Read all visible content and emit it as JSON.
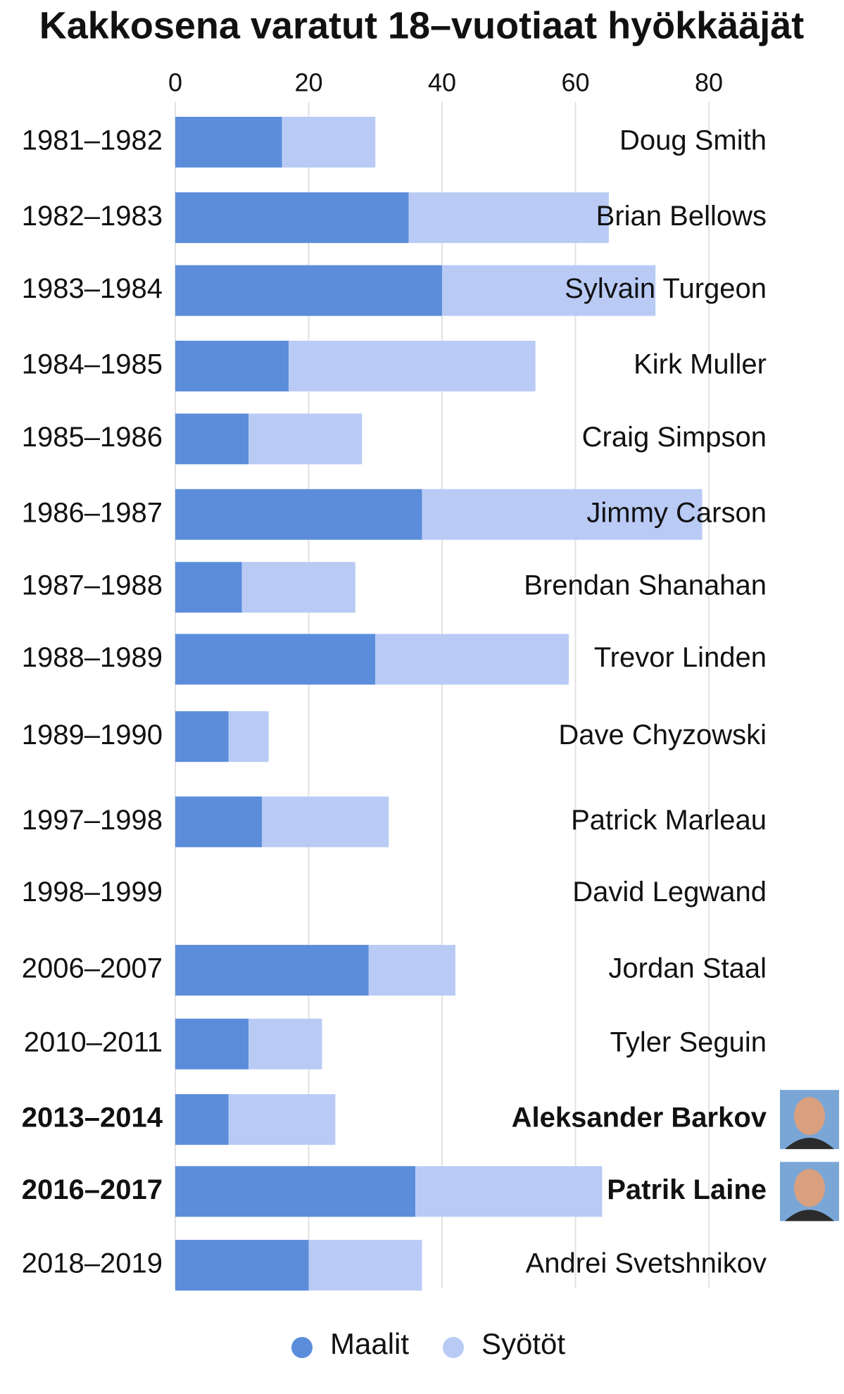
{
  "chart_data": {
    "type": "stacked-barh",
    "title": "Kakkosena varatut 18–vuotiaat hyökkääjät",
    "categories": [
      "1981–1982",
      "1982–1983",
      "1983–1984",
      "1984–1985",
      "1985–1986",
      "1986–1987",
      "1987–1988",
      "1988–1989",
      "1989–1990",
      "1997–1998",
      "1998–1999",
      "2006–2007",
      "2010–2011",
      "2013–2014",
      "2016–2017",
      "2018–2019"
    ],
    "labels": [
      "Doug Smith",
      "Brian Bellows",
      "Sylvain Turgeon",
      "Kirk Muller",
      "Craig Simpson",
      "Jimmy Carson",
      "Brendan Shanahan",
      "Trevor Linden",
      "Dave Chyzowski",
      "Patrick Marleau",
      "David Legwand",
      "Jordan Staal",
      "Tyler Seguin",
      "Aleksander Barkov",
      "Patrik Laine",
      "Andrei Svetshnikov"
    ],
    "highlight_indices": [
      13,
      14
    ],
    "series": [
      {
        "name": "Maalit",
        "color": "#5b8ddb",
        "values": [
          16,
          35,
          40,
          17,
          11,
          37,
          10,
          30,
          8,
          13,
          0,
          29,
          11,
          8,
          36,
          20
        ]
      },
      {
        "name": "Syötöt",
        "color": "#b9cbf5",
        "values": [
          14,
          30,
          32,
          37,
          17,
          42,
          17,
          29,
          6,
          19,
          0,
          13,
          11,
          16,
          28,
          17
        ]
      }
    ],
    "xlim": [
      0,
      80
    ],
    "xticks": [
      0,
      20,
      40,
      60,
      80
    ],
    "grid": true,
    "legend": "bottom"
  }
}
